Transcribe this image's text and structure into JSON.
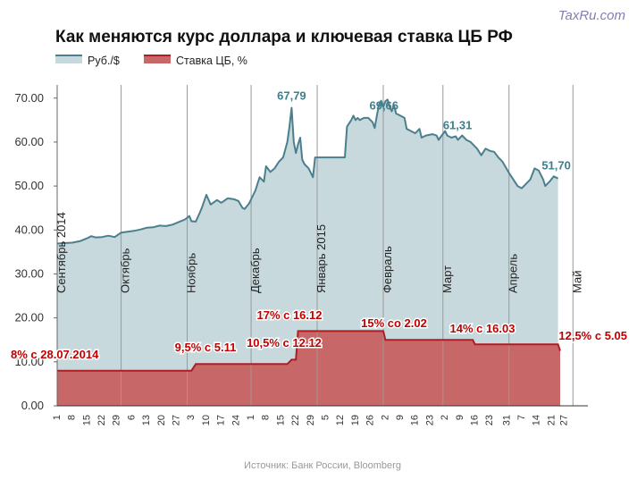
{
  "watermark": "TaxRu.com",
  "colors": {
    "usd_line": "#4b7f8d",
    "usd_fill": "#c8d9de",
    "rate_line": "#b01d22",
    "rate_fill": "#c86767",
    "peak_label": "#3d7f8e",
    "rate_label": "#c00000",
    "month_line": "#999999"
  },
  "chart_data": {
    "type": "area",
    "title": "Как меняются курс доллара и ключевая ставка ЦБ РФ",
    "source": "Источник: Банк России, Bloomberg",
    "ylim": [
      0,
      73
    ],
    "yticks": [
      "0.00",
      "10.00",
      "20.00",
      "30.00",
      "40.00",
      "50.00",
      "60.00",
      "70.00"
    ],
    "ytick_values": [
      0,
      10,
      20,
      30,
      40,
      50,
      60,
      70
    ],
    "grid": false,
    "legend_position": "top-left",
    "xlim": [
      1,
      250
    ],
    "months": [
      {
        "label": "Сентябрь 2014",
        "x": 1
      },
      {
        "label": "Октябрь",
        "x": 31
      },
      {
        "label": "Ноябрь",
        "x": 62
      },
      {
        "label": "Декабрь",
        "x": 92
      },
      {
        "label": "Январь 2015",
        "x": 123
      },
      {
        "label": "Февраль",
        "x": 154
      },
      {
        "label": "Март",
        "x": 182
      },
      {
        "label": "Апрель",
        "x": 213
      },
      {
        "label": "Май",
        "x": 243
      }
    ],
    "xtick_labels": [
      {
        "label": "1",
        "x": 1
      },
      {
        "label": "8",
        "x": 8
      },
      {
        "label": "15",
        "x": 15
      },
      {
        "label": "22",
        "x": 22
      },
      {
        "label": "29",
        "x": 29
      },
      {
        "label": "6",
        "x": 36
      },
      {
        "label": "13",
        "x": 43
      },
      {
        "label": "20",
        "x": 50
      },
      {
        "label": "27",
        "x": 57
      },
      {
        "label": "3",
        "x": 64
      },
      {
        "label": "10",
        "x": 71
      },
      {
        "label": "17",
        "x": 78
      },
      {
        "label": "24",
        "x": 85
      },
      {
        "label": "1",
        "x": 92
      },
      {
        "label": "8",
        "x": 99
      },
      {
        "label": "15",
        "x": 106
      },
      {
        "label": "22",
        "x": 113
      },
      {
        "label": "29",
        "x": 120
      },
      {
        "label": "5",
        "x": 127
      },
      {
        "label": "12",
        "x": 134
      },
      {
        "label": "19",
        "x": 141
      },
      {
        "label": "26",
        "x": 148
      },
      {
        "label": "2",
        "x": 155
      },
      {
        "label": "9",
        "x": 162
      },
      {
        "label": "16",
        "x": 169
      },
      {
        "label": "23",
        "x": 176
      },
      {
        "label": "2",
        "x": 183
      },
      {
        "label": "9",
        "x": 190
      },
      {
        "label": "16",
        "x": 197
      },
      {
        "label": "23",
        "x": 204
      },
      {
        "label": "31",
        "x": 212
      },
      {
        "label": "7",
        "x": 219
      },
      {
        "label": "14",
        "x": 226
      },
      {
        "label": "21",
        "x": 233
      },
      {
        "label": "27",
        "x": 239
      }
    ],
    "series": [
      {
        "name": "Руб./$",
        "type": "area",
        "points": [
          [
            1,
            36.9
          ],
          [
            4,
            37.0
          ],
          [
            8,
            37.1
          ],
          [
            12,
            37.5
          ],
          [
            15,
            38.1
          ],
          [
            17,
            38.6
          ],
          [
            19,
            38.3
          ],
          [
            22,
            38.4
          ],
          [
            25,
            38.7
          ],
          [
            28,
            38.4
          ],
          [
            31,
            39.4
          ],
          [
            34,
            39.6
          ],
          [
            37,
            39.8
          ],
          [
            40,
            40.1
          ],
          [
            43,
            40.5
          ],
          [
            46,
            40.6
          ],
          [
            49,
            41.0
          ],
          [
            52,
            40.9
          ],
          [
            55,
            41.2
          ],
          [
            58,
            41.8
          ],
          [
            61,
            42.4
          ],
          [
            63,
            43.2
          ],
          [
            64,
            42.0
          ],
          [
            66,
            41.9
          ],
          [
            68,
            44.0
          ],
          [
            69,
            45.2
          ],
          [
            71,
            48.0
          ],
          [
            73,
            45.8
          ],
          [
            76,
            46.8
          ],
          [
            78,
            46.2
          ],
          [
            81,
            47.2
          ],
          [
            84,
            47.0
          ],
          [
            86,
            46.6
          ],
          [
            88,
            45.0
          ],
          [
            89,
            44.8
          ],
          [
            91,
            46.0
          ],
          [
            94,
            49.0
          ],
          [
            95,
            50.5
          ],
          [
            96,
            52.0
          ],
          [
            98,
            51.0
          ],
          [
            99,
            54.5
          ],
          [
            101,
            53.2
          ],
          [
            103,
            54.0
          ],
          [
            105,
            55.5
          ],
          [
            107,
            56.5
          ],
          [
            109,
            60.0
          ],
          [
            110,
            63.5
          ],
          [
            111,
            67.79
          ],
          [
            112,
            60.0
          ],
          [
            113,
            57.5
          ],
          [
            114,
            59.5
          ],
          [
            115,
            61.0
          ],
          [
            116,
            56.0
          ],
          [
            117,
            55.0
          ],
          [
            119,
            54.0
          ],
          [
            121,
            52.0
          ],
          [
            122,
            56.5
          ],
          [
            125,
            56.5
          ],
          [
            127,
            56.5
          ],
          [
            130,
            56.5
          ],
          [
            133,
            56.5
          ],
          [
            136,
            56.5
          ],
          [
            137,
            63.5
          ],
          [
            139,
            65.0
          ],
          [
            140,
            66.0
          ],
          [
            141,
            65.0
          ],
          [
            142,
            65.5
          ],
          [
            143,
            65.0
          ],
          [
            145,
            65.5
          ],
          [
            147,
            65.5
          ],
          [
            149,
            64.5
          ],
          [
            150,
            63.2
          ],
          [
            151,
            66.0
          ],
          [
            152,
            68.5
          ],
          [
            153,
            69.4
          ],
          [
            154,
            68.0
          ],
          [
            155,
            69.3
          ],
          [
            156,
            69.66
          ],
          [
            157,
            68.0
          ],
          [
            158,
            67.0
          ],
          [
            159,
            68.5
          ],
          [
            160,
            66.5
          ],
          [
            162,
            66.0
          ],
          [
            164,
            65.5
          ],
          [
            165,
            63.0
          ],
          [
            167,
            62.5
          ],
          [
            169,
            62.0
          ],
          [
            171,
            63.0
          ],
          [
            172,
            61.0
          ],
          [
            174,
            61.5
          ],
          [
            176,
            61.7
          ],
          [
            177,
            61.8
          ],
          [
            179,
            61.5
          ],
          [
            180,
            60.5
          ],
          [
            181,
            61.2
          ],
          [
            183,
            62.5
          ],
          [
            184,
            61.5
          ],
          [
            186,
            61.0
          ],
          [
            188,
            61.31
          ],
          [
            189,
            60.5
          ],
          [
            191,
            61.5
          ],
          [
            193,
            60.5
          ],
          [
            195,
            60.0
          ],
          [
            198,
            58.5
          ],
          [
            200,
            57.0
          ],
          [
            202,
            58.5
          ],
          [
            204,
            58.0
          ],
          [
            206,
            57.8
          ],
          [
            208,
            56.5
          ],
          [
            210,
            55.5
          ],
          [
            213,
            53.0
          ],
          [
            215,
            51.5
          ],
          [
            217,
            50.0
          ],
          [
            219,
            49.5
          ],
          [
            221,
            50.5
          ],
          [
            223,
            51.5
          ],
          [
            225,
            54.0
          ],
          [
            227,
            53.5
          ],
          [
            229,
            51.5
          ],
          [
            230,
            50.0
          ],
          [
            232,
            51.0
          ],
          [
            234,
            52.2
          ],
          [
            236,
            51.7
          ]
        ]
      },
      {
        "name": "Ставка ЦБ, %",
        "type": "step-area",
        "points": [
          [
            1,
            8
          ],
          [
            64,
            8
          ],
          [
            66,
            9.5
          ],
          [
            109,
            9.5
          ],
          [
            111,
            10.5
          ],
          [
            113,
            10.5
          ],
          [
            114,
            17
          ],
          [
            154,
            17
          ],
          [
            155,
            15
          ],
          [
            196,
            15
          ],
          [
            197,
            14
          ],
          [
            236,
            14
          ],
          [
            237,
            12.5
          ]
        ]
      }
    ],
    "annotations": {
      "usd_peaks": [
        {
          "text": "67,79",
          "x": 111,
          "y": 67.79
        },
        {
          "text": "69,66",
          "x": 156,
          "y": 69.66
        },
        {
          "text": "61,31",
          "x": 188,
          "y": 61.31
        },
        {
          "text": "51,70",
          "x": 236,
          "y": 51.7
        }
      ],
      "rate_labels": [
        {
          "text": "8% с 28.07.2014",
          "x": 1
        },
        {
          "text": "9,5% с 5.11",
          "x": 66
        },
        {
          "text": "10,5% с 12.12",
          "x": 111
        },
        {
          "text": "17% с 16.12",
          "x": 114
        },
        {
          "text": "15% со 2.02",
          "x": 155
        },
        {
          "text": "14% с 16.03",
          "x": 197
        },
        {
          "text": "12,5% с 5.05",
          "x": 237
        }
      ]
    }
  }
}
